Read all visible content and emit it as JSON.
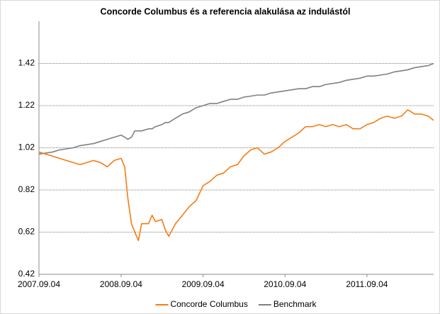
{
  "chart_data": {
    "type": "line",
    "title": "Concorde Columbus és a referencia alakulása az indulástól",
    "x": [
      "2007.09.04",
      "2007.10.04",
      "2007.11.04",
      "2007.12.04",
      "2008.01.04",
      "2008.02.04",
      "2008.03.04",
      "2008.04.04",
      "2008.05.04",
      "2008.06.04",
      "2008.07.04",
      "2008.08.04",
      "2008.09.04",
      "2008.09.20",
      "2008.10.04",
      "2008.10.20",
      "2008.11.04",
      "2008.11.20",
      "2008.12.04",
      "2009.01.04",
      "2009.01.20",
      "2009.02.04",
      "2009.03.04",
      "2009.03.20",
      "2009.04.04",
      "2009.05.04",
      "2009.06.04",
      "2009.07.04",
      "2009.08.04",
      "2009.09.04",
      "2009.10.04",
      "2009.11.04",
      "2009.12.04",
      "2010.01.04",
      "2010.02.04",
      "2010.03.04",
      "2010.04.04",
      "2010.05.04",
      "2010.06.04",
      "2010.07.04",
      "2010.08.04",
      "2010.09.04",
      "2010.10.04",
      "2010.11.04",
      "2010.12.04",
      "2011.01.04",
      "2011.02.04",
      "2011.03.04",
      "2011.04.04",
      "2011.05.04",
      "2011.06.04",
      "2011.07.04",
      "2011.08.04",
      "2011.09.04",
      "2011.10.04",
      "2011.11.04",
      "2011.12.04",
      "2012.01.04",
      "2012.02.04",
      "2012.03.04",
      "2012.04.04",
      "2012.05.04",
      "2012.06.04",
      "2012.06.27"
    ],
    "series": [
      {
        "name": "Concorde Columbus",
        "color": "#f57c14",
        "values": [
          1.0,
          0.99,
          0.98,
          0.97,
          0.96,
          0.95,
          0.94,
          0.95,
          0.96,
          0.95,
          0.93,
          0.96,
          0.97,
          0.93,
          0.78,
          0.66,
          0.62,
          0.58,
          0.66,
          0.66,
          0.7,
          0.67,
          0.68,
          0.63,
          0.6,
          0.66,
          0.7,
          0.74,
          0.77,
          0.84,
          0.86,
          0.89,
          0.9,
          0.93,
          0.94,
          0.98,
          1.01,
          1.02,
          0.99,
          1.0,
          1.02,
          1.05,
          1.07,
          1.09,
          1.12,
          1.12,
          1.13,
          1.12,
          1.13,
          1.12,
          1.13,
          1.11,
          1.11,
          1.13,
          1.14,
          1.16,
          1.17,
          1.16,
          1.17,
          1.2,
          1.18,
          1.18,
          1.17,
          1.15
        ]
      },
      {
        "name": "Benchmark",
        "color": "#808080",
        "values": [
          0.99,
          0.995,
          1.0,
          1.01,
          1.015,
          1.02,
          1.03,
          1.035,
          1.04,
          1.05,
          1.06,
          1.07,
          1.08,
          1.07,
          1.06,
          1.07,
          1.1,
          1.1,
          1.1,
          1.11,
          1.11,
          1.12,
          1.13,
          1.14,
          1.14,
          1.16,
          1.18,
          1.19,
          1.21,
          1.22,
          1.23,
          1.23,
          1.24,
          1.25,
          1.25,
          1.26,
          1.265,
          1.27,
          1.27,
          1.28,
          1.285,
          1.29,
          1.295,
          1.3,
          1.3,
          1.31,
          1.31,
          1.32,
          1.325,
          1.33,
          1.34,
          1.345,
          1.35,
          1.36,
          1.36,
          1.365,
          1.37,
          1.38,
          1.385,
          1.39,
          1.4,
          1.405,
          1.41,
          1.42
        ]
      }
    ],
    "xlim": [
      "2007.09.04",
      "2012.06.27"
    ],
    "xticks": [
      "2007.09.04",
      "2008.09.04",
      "2009.09.04",
      "2010.09.04",
      "2011.09.04"
    ],
    "ylim": [
      0.42,
      1.62
    ],
    "yticks": [
      0.42,
      0.62,
      0.82,
      1.02,
      1.22,
      1.42
    ],
    "grid": true,
    "legend": "bottom"
  }
}
